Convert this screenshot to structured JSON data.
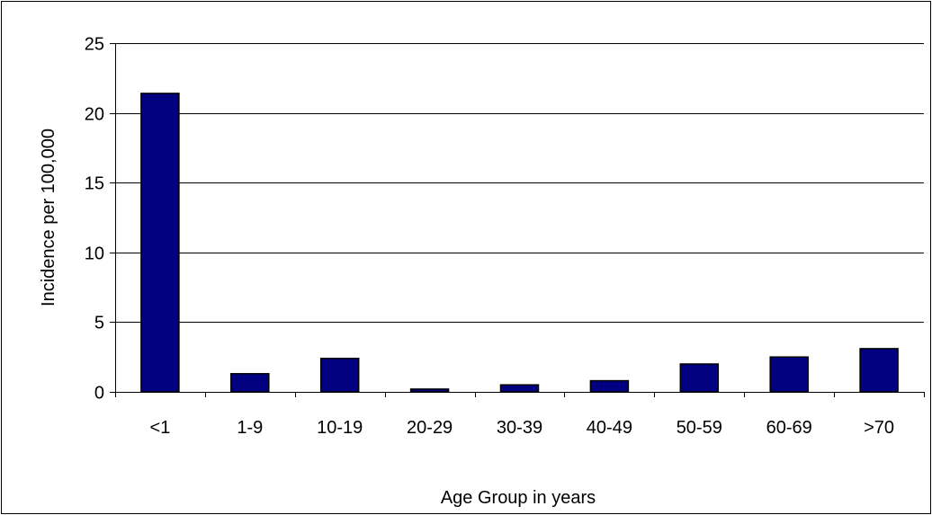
{
  "chart_data": {
    "type": "bar",
    "title": "",
    "xlabel": "Age Group in years",
    "ylabel": "Incidence per 100,000",
    "categories": [
      "<1",
      "1-9",
      "10-19",
      "20-29",
      "30-39",
      "40-49",
      "50-59",
      "60-69",
      ">70"
    ],
    "values": [
      21.4,
      1.3,
      2.4,
      0.2,
      0.5,
      0.8,
      2.0,
      2.5,
      3.1
    ],
    "ylim": [
      0,
      25
    ],
    "yticks": [
      0,
      5,
      10,
      15,
      20,
      25
    ],
    "grid": true,
    "legend": "none",
    "bar_color": "#000080"
  }
}
